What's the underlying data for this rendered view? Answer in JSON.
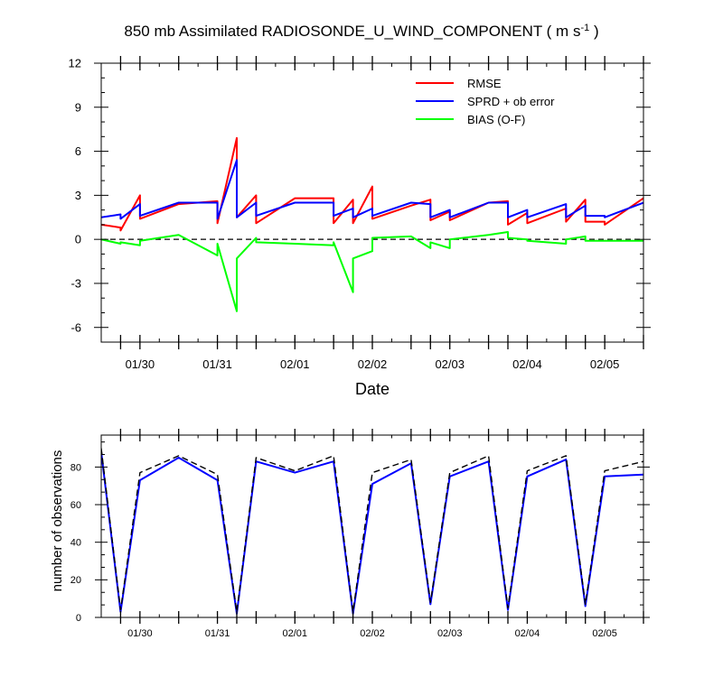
{
  "figure": {
    "title": "850 mb Assimilated RADIOSONDE_U_WIND_COMPONENT ( m s",
    "title_sup": "-1",
    "title_end": " )"
  },
  "chart_data": [
    {
      "type": "line",
      "title": "850 mb Assimilated RADIOSONDE_U_WIND_COMPONENT ( m s-1 )",
      "xlabel": "Date",
      "ylabel": "",
      "xlim": [
        0,
        7
      ],
      "ylim": [
        -7,
        12
      ],
      "yticks": [
        -6,
        -3,
        0,
        3,
        6,
        9,
        12
      ],
      "xtick_labels": [
        "01/30",
        "01/31",
        "02/01",
        "02/02",
        "02/03",
        "02/04",
        "02/05"
      ],
      "xtick_positions": [
        0.5,
        1.5,
        2.5,
        3.5,
        4.5,
        5.5,
        6.5
      ],
      "legend": "top-right",
      "zero_line": "dashed",
      "series": [
        {
          "name": "RMSE",
          "color": "#ff0000",
          "x": [
            0,
            0.25,
            0.25,
            0.5,
            0.5,
            1.0,
            1.5,
            1.5,
            1.75,
            1.75,
            2.0,
            2.0,
            2.5,
            3.0,
            3.0,
            3.25,
            3.25,
            3.5,
            3.5,
            4.0,
            4.25,
            4.25,
            4.5,
            4.5,
            5.0,
            5.25,
            5.25,
            5.5,
            5.5,
            6.0,
            6.0,
            6.25,
            6.25,
            6.5,
            6.5,
            7.0
          ],
          "y": [
            1.0,
            0.8,
            0.6,
            3.0,
            1.4,
            2.4,
            2.6,
            1.1,
            6.9,
            1.5,
            3.0,
            1.1,
            2.8,
            2.8,
            1.1,
            2.7,
            1.1,
            3.6,
            1.4,
            2.3,
            2.7,
            1.3,
            1.9,
            1.3,
            2.5,
            2.6,
            1.0,
            1.8,
            1.1,
            2.1,
            1.2,
            2.7,
            1.2,
            1.2,
            1.0,
            2.8
          ]
        },
        {
          "name": "SPRD + ob error",
          "color": "#0000ff",
          "x": [
            0,
            0.25,
            0.25,
            0.5,
            0.5,
            1.0,
            1.5,
            1.5,
            1.75,
            1.75,
            2.0,
            2.0,
            2.5,
            3.0,
            3.0,
            3.25,
            3.25,
            3.5,
            3.5,
            4.0,
            4.25,
            4.25,
            4.5,
            4.5,
            5.0,
            5.25,
            5.25,
            5.5,
            5.5,
            6.0,
            6.0,
            6.25,
            6.25,
            6.5,
            6.5,
            7.0
          ],
          "y": [
            1.5,
            1.7,
            1.4,
            2.4,
            1.6,
            2.5,
            2.5,
            1.4,
            5.4,
            1.5,
            2.5,
            1.6,
            2.5,
            2.5,
            1.6,
            2.1,
            1.5,
            2.1,
            1.6,
            2.5,
            2.4,
            1.5,
            2.0,
            1.5,
            2.5,
            2.5,
            1.5,
            2.0,
            1.5,
            2.4,
            1.5,
            2.3,
            1.6,
            1.6,
            1.5,
            2.5
          ]
        },
        {
          "name": "BIAS (O-F)",
          "color": "#00ff00",
          "x": [
            0,
            0.25,
            0.25,
            0.5,
            0.5,
            1.0,
            1.5,
            1.5,
            1.75,
            1.75,
            2.0,
            2.0,
            2.5,
            3.0,
            3.0,
            3.25,
            3.25,
            3.5,
            3.5,
            4.0,
            4.25,
            4.25,
            4.5,
            4.5,
            5.0,
            5.25,
            5.25,
            5.5,
            5.5,
            6.0,
            6.0,
            6.25,
            6.25,
            6.5,
            6.5,
            7.0
          ],
          "y": [
            0.0,
            -0.3,
            -0.2,
            -0.4,
            -0.1,
            0.3,
            -1.1,
            -0.3,
            -4.9,
            -1.3,
            0.1,
            -0.2,
            -0.3,
            -0.4,
            -0.2,
            -3.6,
            -1.3,
            -0.8,
            0.1,
            0.2,
            -0.6,
            -0.2,
            -0.6,
            0.0,
            0.3,
            0.5,
            0.1,
            0.0,
            -0.1,
            -0.3,
            0.0,
            0.2,
            -0.1,
            -0.1,
            -0.1,
            -0.1
          ]
        }
      ]
    },
    {
      "type": "line",
      "title": "",
      "xlabel": "",
      "ylabel": "number of observations",
      "xlim": [
        0,
        7
      ],
      "ylim": [
        0,
        97
      ],
      "yticks": [
        0,
        20,
        40,
        60,
        80
      ],
      "xtick_labels": [
        "01/30",
        "01/31",
        "02/01",
        "02/02",
        "02/03",
        "02/04",
        "02/05"
      ],
      "xtick_positions": [
        0.5,
        1.5,
        2.5,
        3.5,
        4.5,
        5.5,
        6.5
      ],
      "series": [
        {
          "style": "solid",
          "color": "#0000ff",
          "x": [
            0,
            0.25,
            0.5,
            1.0,
            1.5,
            1.75,
            2.0,
            2.5,
            3.0,
            3.25,
            3.5,
            4.0,
            4.25,
            4.5,
            5.0,
            5.25,
            5.5,
            6.0,
            6.25,
            6.5,
            7.0
          ],
          "y": [
            88,
            3,
            73,
            85,
            73,
            2,
            83,
            77,
            83,
            2,
            71,
            82,
            7,
            75,
            83,
            4,
            75,
            84,
            6,
            75,
            76
          ]
        },
        {
          "style": "dashed",
          "color": "#000000",
          "x": [
            0,
            0.25,
            0.5,
            1.0,
            1.5,
            1.75,
            2.0,
            2.5,
            3.0,
            3.25,
            3.5,
            4.0,
            4.25,
            4.5,
            5.0,
            5.25,
            5.5,
            6.0,
            6.25,
            6.5,
            7.0
          ],
          "y": [
            90,
            4,
            77,
            86,
            76,
            3,
            85,
            78,
            86,
            3,
            77,
            84,
            8,
            77,
            86,
            5,
            78,
            86,
            7,
            78,
            83
          ]
        }
      ]
    }
  ]
}
